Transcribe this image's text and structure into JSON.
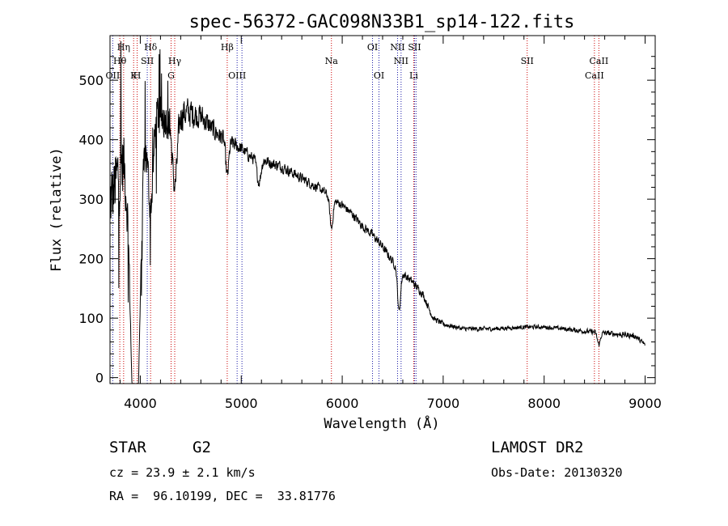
{
  "chart_data": {
    "type": "line",
    "title": "spec-56372-GAC098N33B1_sp14-122.fits",
    "xlabel": "Wavelength (Å)",
    "ylabel": "Flux (relative)",
    "xlim": [
      3700,
      9100
    ],
    "ylim": [
      -10,
      575
    ],
    "xticks": [
      4000,
      5000,
      6000,
      7000,
      8000,
      9000
    ],
    "yticks": [
      0,
      100,
      200,
      300,
      400,
      500
    ],
    "grid": false,
    "line_color": "#000000",
    "marker_color_red": "#cc0000",
    "marker_color_blue": "#1a1aa8",
    "spectral_lines": [
      {
        "label": "Hη",
        "wavelength": 3835,
        "row": 0,
        "color": "red"
      },
      {
        "label": "Hθ",
        "wavelength": 3797,
        "row": 1,
        "color": "red"
      },
      {
        "label": "OII",
        "wavelength": 3727,
        "row": 2,
        "color": "blue"
      },
      {
        "label": "Hδ",
        "wavelength": 4102,
        "row": 0,
        "color": "red"
      },
      {
        "label": "SII",
        "wavelength": 4069,
        "row": 1,
        "color": "blue"
      },
      {
        "label": "K",
        "wavelength": 3934,
        "row": 2,
        "color": "red"
      },
      {
        "label": "H",
        "wavelength": 3969,
        "row": 2,
        "color": "red"
      },
      {
        "label": "Hγ",
        "wavelength": 4341,
        "row": 1,
        "color": "red"
      },
      {
        "label": "G",
        "wavelength": 4305,
        "row": 2,
        "color": "red"
      },
      {
        "label": "Hβ",
        "wavelength": 4861,
        "row": 0,
        "color": "red"
      },
      {
        "label": "OIII",
        "wavelength": 4959,
        "row": 2,
        "color": "blue"
      },
      {
        "label": "OIII",
        "wavelength": 5007,
        "row": 2,
        "color": "blue",
        "hide_label": true
      },
      {
        "label": "Na",
        "wavelength": 5893,
        "row": 1,
        "color": "red"
      },
      {
        "label": "OI",
        "wavelength": 6300,
        "row": 0,
        "color": "blue"
      },
      {
        "label": "OI",
        "wavelength": 6364,
        "row": 2,
        "color": "blue"
      },
      {
        "label": "NII",
        "wavelength": 6548,
        "row": 0,
        "color": "blue"
      },
      {
        "label": "NII",
        "wavelength": 6583,
        "row": 1,
        "color": "blue"
      },
      {
        "label": "SII",
        "wavelength": 6716,
        "row": 0,
        "color": "blue"
      },
      {
        "label": "Li",
        "wavelength": 6708,
        "row": 2,
        "color": "red"
      },
      {
        "label": "SII",
        "wavelength": 6731,
        "row": 0,
        "color": "blue",
        "hide_label": true
      },
      {
        "label": "SII",
        "wavelength": 7832,
        "row": 1,
        "color": "red"
      },
      {
        "label": "CaII",
        "wavelength": 8542,
        "row": 1,
        "color": "red"
      },
      {
        "label": "CaII",
        "wavelength": 8498,
        "row": 2,
        "color": "red"
      }
    ],
    "continuum": [
      [
        3700,
        290
      ],
      [
        3800,
        350
      ],
      [
        3900,
        410
      ],
      [
        4000,
        430
      ],
      [
        4100,
        440
      ],
      [
        4200,
        440
      ],
      [
        4300,
        440
      ],
      [
        4400,
        445
      ],
      [
        4500,
        445
      ],
      [
        4600,
        440
      ],
      [
        4700,
        420
      ],
      [
        4800,
        405
      ],
      [
        4900,
        395
      ],
      [
        5000,
        385
      ],
      [
        5100,
        370
      ],
      [
        5200,
        368
      ],
      [
        5300,
        360
      ],
      [
        5400,
        355
      ],
      [
        5500,
        345
      ],
      [
        5600,
        335
      ],
      [
        5700,
        325
      ],
      [
        5800,
        315
      ],
      [
        5900,
        300
      ],
      [
        6000,
        290
      ],
      [
        6100,
        275
      ],
      [
        6200,
        255
      ],
      [
        6300,
        240
      ],
      [
        6400,
        220
      ],
      [
        6500,
        195
      ],
      [
        6600,
        175
      ],
      [
        6700,
        160
      ],
      [
        6800,
        140
      ],
      [
        6850,
        120
      ],
      [
        6900,
        100
      ],
      [
        7000,
        90
      ],
      [
        7200,
        82
      ],
      [
        7500,
        82
      ],
      [
        7800,
        85
      ],
      [
        8000,
        85
      ],
      [
        8200,
        82
      ],
      [
        8400,
        78
      ],
      [
        8600,
        75
      ],
      [
        8800,
        72
      ],
      [
        8900,
        70
      ],
      [
        9000,
        55
      ]
    ],
    "absorption_features": [
      [
        3934,
        40,
        330
      ],
      [
        3969,
        40,
        290
      ],
      [
        4102,
        25,
        150
      ],
      [
        4341,
        25,
        120
      ],
      [
        4861,
        15,
        60
      ],
      [
        5175,
        20,
        40
      ],
      [
        5893,
        15,
        50
      ],
      [
        6563,
        15,
        70
      ],
      [
        8542,
        15,
        20
      ]
    ],
    "noise_amplitude": [
      [
        3700,
        0.55
      ],
      [
        4000,
        0.3
      ],
      [
        4300,
        0.18
      ],
      [
        4600,
        0.12
      ],
      [
        5000,
        0.07
      ],
      [
        6000,
        0.06
      ],
      [
        6900,
        0.12
      ],
      [
        8000,
        0.1
      ],
      [
        9000,
        0.18
      ]
    ]
  },
  "info": {
    "object_class": "STAR",
    "subclass": "G2",
    "survey": "LAMOST DR2",
    "redshift_line": "cz = 23.9 ± 2.1 km/s",
    "obs_date_line": "Obs-Date: 20130320",
    "coords_line": "RA =  96.10199, DEC =  33.81776"
  }
}
